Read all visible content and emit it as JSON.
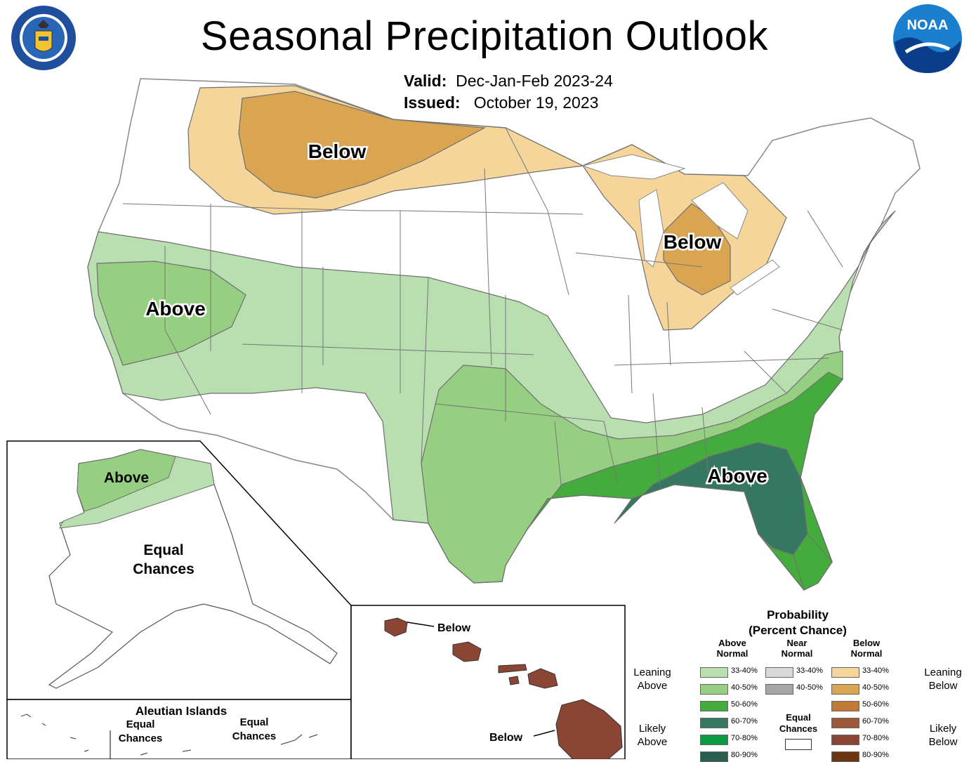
{
  "header": {
    "title": "Seasonal Precipitation Outlook",
    "valid_label": "Valid:",
    "valid_value": "Dec-Jan-Feb 2023-24",
    "issued_label": "Issued:",
    "issued_value": "October 19, 2023"
  },
  "logos": {
    "left": "department-of-commerce-seal",
    "right": "noaa-logo",
    "noaa_text": "NOAA"
  },
  "map_labels": {
    "north_below": "Below",
    "great_lakes_below": "Below",
    "west_above": "Above",
    "southeast_above": "Above"
  },
  "alaska": {
    "above": "Above",
    "equal_line1": "Equal",
    "equal_line2": "Chances"
  },
  "hawaii": {
    "below_top": "Below",
    "below_bottom": "Below"
  },
  "aleutian": {
    "title": "Aleutian Islands",
    "left_line1": "Equal",
    "left_line2": "Chances",
    "right_line1": "Equal",
    "right_line2": "Chances"
  },
  "colors": {
    "lean_above": "#b9dfb1",
    "above_40_50": "#96cf82",
    "above_50_60": "#44ac3c",
    "above_60_70": "#367762",
    "above_70_80": "#0b9a43",
    "above_80_90": "#285e4f",
    "near_33_40": "#d9d9d9",
    "near_40_50": "#a6a6a6",
    "lean_below": "#f5d59a",
    "below_40_50": "#d9a552",
    "below_50_60": "#c07a35",
    "below_60_70": "#9c5a3a",
    "below_70_80": "#8b4535",
    "below_80_90": "#6b3512"
  },
  "legend": {
    "title_line1": "Probability",
    "title_line2": "(Percent Chance)",
    "above_header_1": "Above",
    "above_header_2": "Normal",
    "near_header_1": "Near",
    "near_header_2": "Normal",
    "below_header_1": "Below",
    "below_header_2": "Normal",
    "leaning_above_1": "Leaning",
    "leaning_above_2": "Above",
    "leaning_below_1": "Leaning",
    "leaning_below_2": "Below",
    "likely_above_1": "Likely",
    "likely_above_2": "Above",
    "likely_below_1": "Likely",
    "likely_below_2": "Below",
    "equal_1": "Equal",
    "equal_2": "Chances",
    "above_ranges": [
      "33-40%",
      "40-50%",
      "50-60%",
      "60-70%",
      "70-80%",
      "80-90%"
    ],
    "near_ranges": [
      "33-40%",
      "40-50%"
    ],
    "below_ranges": [
      "33-40%",
      "40-50%",
      "50-60%",
      "60-70%",
      "70-80%",
      "80-90%"
    ]
  }
}
